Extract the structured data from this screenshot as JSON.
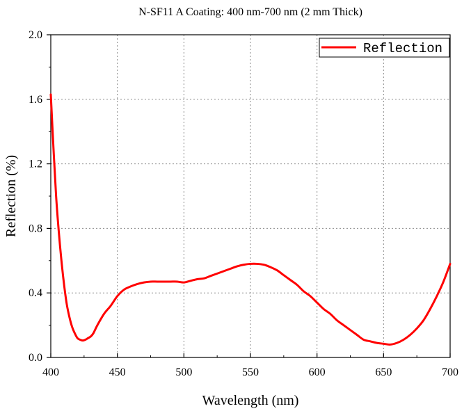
{
  "chart_data": {
    "type": "line",
    "title": "N-SF11 A Coating: 400 nm-700 nm (2 mm Thick)",
    "xlabel": "Wavelength (nm)",
    "ylabel": "Reflection (%)",
    "xlim": [
      400,
      700
    ],
    "ylim": [
      0.0,
      2.0
    ],
    "xticks": [
      400,
      450,
      500,
      550,
      600,
      650,
      700
    ],
    "xtick_labels": [
      "400",
      "450",
      "500",
      "550",
      "600",
      "650",
      "700"
    ],
    "yticks": [
      0.0,
      0.4,
      0.8,
      1.2,
      1.6,
      2.0
    ],
    "ytick_labels": [
      "0.0",
      "0.4",
      "0.8",
      "1.2",
      "1.6",
      "2.0"
    ],
    "grid": true,
    "legend_position": "top-right",
    "series": [
      {
        "name": "Reflection",
        "color": "#ff0000",
        "x": [
          400,
          402,
          404,
          406,
          408,
          410,
          412,
          414,
          416,
          418,
          420,
          422,
          424,
          426,
          428,
          430,
          432,
          435,
          440,
          445,
          450,
          455,
          460,
          465,
          470,
          475,
          480,
          485,
          490,
          495,
          500,
          505,
          510,
          515,
          520,
          525,
          530,
          535,
          540,
          545,
          550,
          555,
          560,
          565,
          570,
          575,
          580,
          585,
          590,
          595,
          600,
          605,
          610,
          615,
          620,
          625,
          630,
          635,
          640,
          645,
          650,
          655,
          660,
          665,
          670,
          675,
          680,
          685,
          690,
          695,
          700
        ],
        "y": [
          1.63,
          1.3,
          1.0,
          0.78,
          0.6,
          0.45,
          0.33,
          0.25,
          0.19,
          0.15,
          0.12,
          0.11,
          0.105,
          0.11,
          0.12,
          0.13,
          0.15,
          0.2,
          0.27,
          0.32,
          0.38,
          0.42,
          0.44,
          0.455,
          0.465,
          0.47,
          0.47,
          0.47,
          0.47,
          0.47,
          0.465,
          0.475,
          0.485,
          0.49,
          0.505,
          0.52,
          0.535,
          0.55,
          0.565,
          0.575,
          0.58,
          0.58,
          0.575,
          0.56,
          0.54,
          0.51,
          0.48,
          0.45,
          0.41,
          0.38,
          0.34,
          0.3,
          0.27,
          0.23,
          0.2,
          0.17,
          0.14,
          0.11,
          0.1,
          0.09,
          0.085,
          0.08,
          0.09,
          0.11,
          0.14,
          0.18,
          0.23,
          0.3,
          0.38,
          0.47,
          0.58
        ]
      }
    ]
  }
}
